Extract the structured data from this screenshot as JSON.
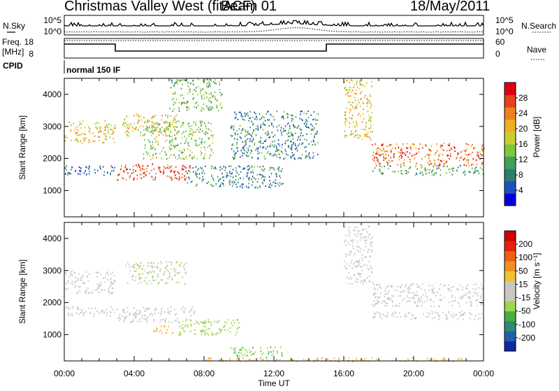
{
  "header": {
    "station": "Christmas Valley West (fitACF)",
    "beam": "Beam 01",
    "date": "18/May/2011"
  },
  "strip": {
    "nsky_label": "N.Sky",
    "nsearch_label": "N.Search",
    "nsky_ticks": [
      "10^5",
      "10^0"
    ],
    "freq_label": "Freq.",
    "freq_unit": "[MHz]",
    "freq_ticks": [
      "18",
      "8"
    ],
    "nave_label": "Nave",
    "nave_ticks": [
      "60",
      "0"
    ],
    "cpid_label": "CPID",
    "cpid_value": "normal 150 IF"
  },
  "axes": {
    "ylabel": "Slant Range [km]",
    "xlabel": "Time UT",
    "yticks": [
      1000,
      2000,
      3000,
      4000
    ],
    "xticks": [
      "00:00",
      "04:00",
      "08:00",
      "12:00",
      "16:00",
      "20:00",
      "00:00"
    ],
    "xlim_hours": [
      0,
      24
    ],
    "ylim_km": [
      180,
      4500
    ]
  },
  "colorbars": {
    "power": {
      "label": "Power [dB]",
      "ticks": [
        "28",
        "24",
        "20",
        "16",
        "12",
        "8",
        "4"
      ],
      "colors": [
        "#0000dd",
        "#2050c0",
        "#2e7d6e",
        "#3fa05a",
        "#7cc83c",
        "#c8d030",
        "#f0b020",
        "#f08020",
        "#e84020",
        "#e00010"
      ]
    },
    "velocity": {
      "label": "Velocity [m s⁻¹]",
      "ticks": [
        "200",
        "100",
        "50",
        "15",
        "-15",
        "-50",
        "-100",
        "-200"
      ],
      "colors": [
        "#1028a0",
        "#2060a8",
        "#2e8a70",
        "#44b040",
        "#9cd84a",
        "#c8c8c0",
        "#c8c8c0",
        "#f0c030",
        "#f09020",
        "#f06010",
        "#e82010",
        "#d00000"
      ]
    }
  },
  "chart_data": {
    "type": "heatmap",
    "title": "Christmas Valley West (fitACF)",
    "xlabel": "Time UT",
    "ylabel": "Slant Range [km]",
    "panels": [
      {
        "name": "Power",
        "units": "dB",
        "range": [
          0,
          30
        ],
        "features": [
          {
            "t0": 0.0,
            "t1": 2.9,
            "r0": 2500,
            "r1": 3200,
            "value": 18
          },
          {
            "t0": 0.0,
            "t1": 2.9,
            "r0": 1500,
            "r1": 1800,
            "value": 6
          },
          {
            "t0": 3.0,
            "t1": 7.2,
            "r0": 1350,
            "r1": 1850,
            "value": 26
          },
          {
            "t0": 3.3,
            "t1": 6.5,
            "r0": 2700,
            "r1": 3400,
            "value": 18
          },
          {
            "t0": 4.5,
            "t1": 8.5,
            "r0": 2000,
            "r1": 3200,
            "value": 14
          },
          {
            "t0": 6.0,
            "t1": 9.0,
            "r0": 3500,
            "r1": 4500,
            "value": 12
          },
          {
            "t0": 7.0,
            "t1": 12.5,
            "r0": 1100,
            "r1": 1800,
            "value": 8
          },
          {
            "t0": 9.5,
            "t1": 14.5,
            "r0": 2000,
            "r1": 3500,
            "value": 8
          },
          {
            "t0": 16.0,
            "t1": 17.6,
            "r0": 2600,
            "r1": 4500,
            "value": 18
          },
          {
            "t0": 17.6,
            "t1": 24.0,
            "r0": 1800,
            "r1": 2500,
            "value": 24
          },
          {
            "t0": 17.6,
            "t1": 24.0,
            "r0": 1500,
            "r1": 1800,
            "value": 10
          }
        ]
      },
      {
        "name": "Velocity",
        "units": "m s-1",
        "range": [
          -200,
          200
        ],
        "features": [
          {
            "t0": 0.0,
            "t1": 2.9,
            "r0": 2300,
            "r1": 3000,
            "value": 0
          },
          {
            "t0": 0.0,
            "t1": 2.9,
            "r0": 1600,
            "r1": 1900,
            "value": 0
          },
          {
            "t0": 3.0,
            "t1": 7.5,
            "r0": 1400,
            "r1": 1900,
            "value": 0
          },
          {
            "t0": 5.0,
            "t1": 6.2,
            "r0": 1050,
            "r1": 1300,
            "value": 60
          },
          {
            "t0": 6.5,
            "t1": 10.0,
            "r0": 1000,
            "r1": 1500,
            "value": -50
          },
          {
            "t0": 9.5,
            "t1": 12.5,
            "r0": 300,
            "r1": 650,
            "value": -60
          },
          {
            "t0": 3.5,
            "t1": 7.0,
            "r0": 2600,
            "r1": 3300,
            "value": -30
          },
          {
            "t0": 16.0,
            "t1": 17.6,
            "r0": 2600,
            "r1": 4400,
            "value": 0
          },
          {
            "t0": 17.6,
            "t1": 24.0,
            "r0": 1900,
            "r1": 2600,
            "value": 0
          },
          {
            "t0": 17.6,
            "t1": 24.0,
            "r0": 1500,
            "r1": 1750,
            "value": 0
          },
          {
            "t0": 8.0,
            "t1": 23.0,
            "r0": 180,
            "r1": 300,
            "value": 50
          }
        ]
      }
    ]
  }
}
